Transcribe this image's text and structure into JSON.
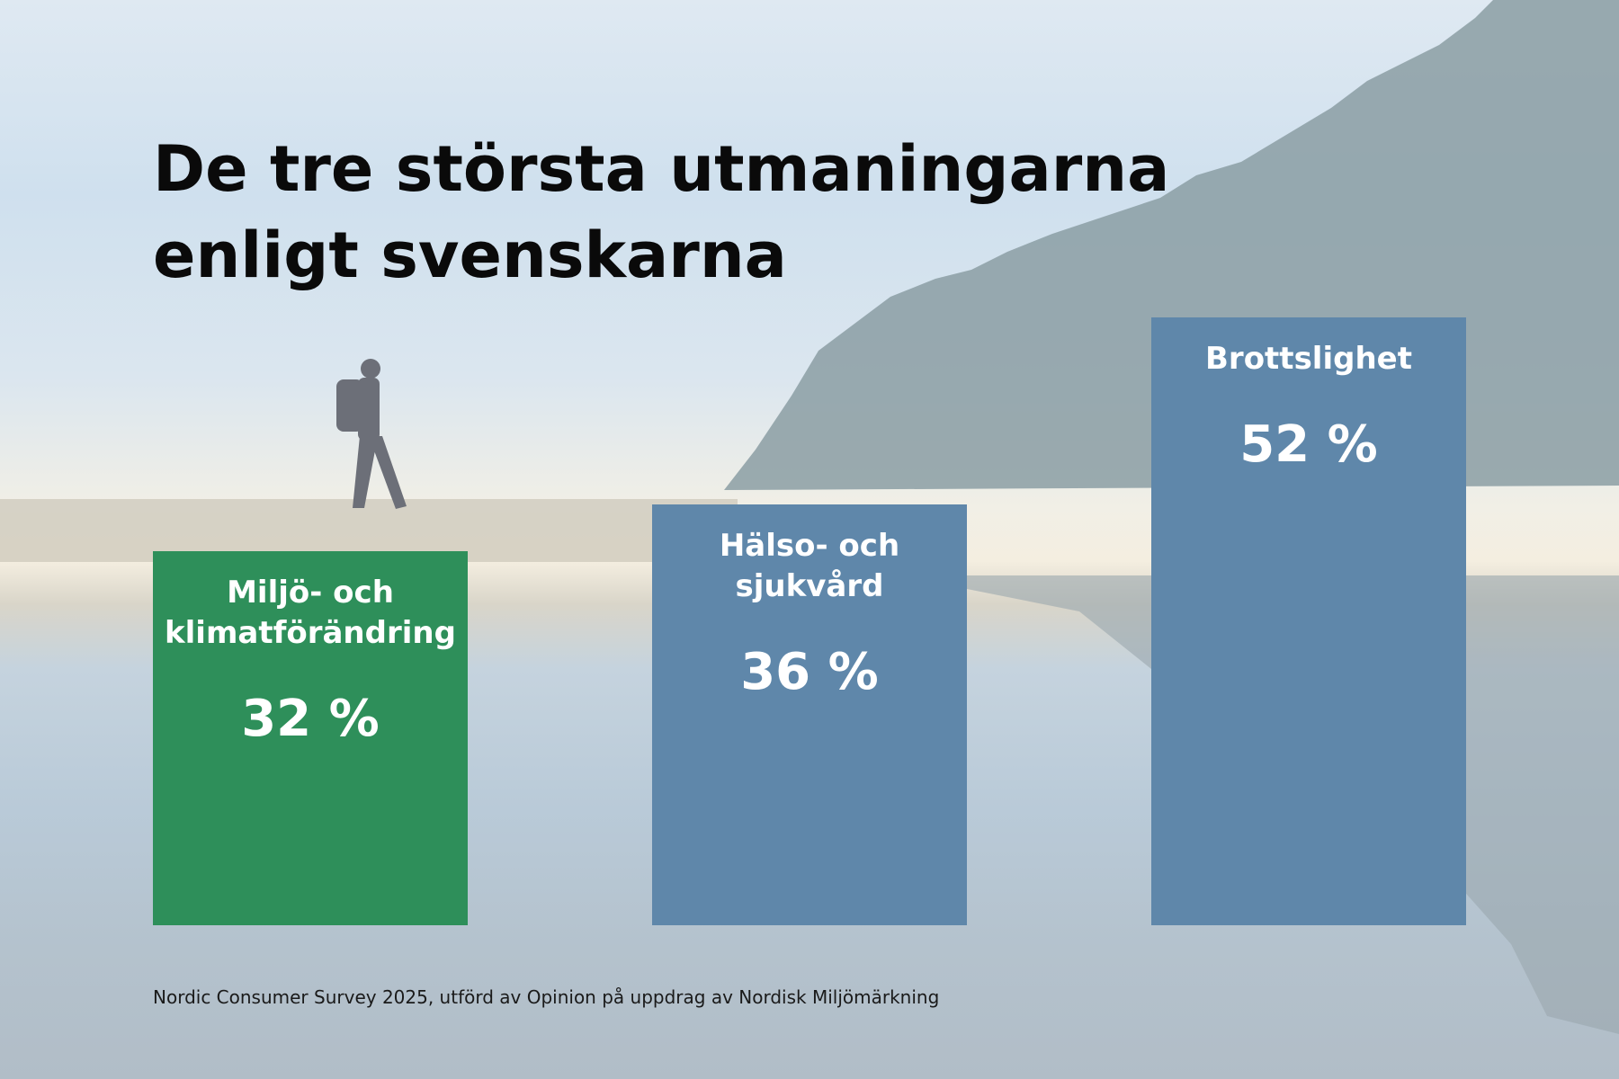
{
  "title_line1": "De tre största utmaningarna",
  "title_line2": "enligt svenskarna",
  "footer": "Nordic Consumer Survey 2025, utförd av Opinion på uppdrag av Nordisk Miljömärkning",
  "chart_data": {
    "type": "bar",
    "categories": [
      "Miljö- och klimatförändring",
      "Hälso- och sjukvård",
      "Brottslighet"
    ],
    "category_lines": [
      [
        "Miljö- och",
        "klimatförändring"
      ],
      [
        "Hälso- och",
        "sjukvård"
      ],
      [
        "Brottslighet"
      ]
    ],
    "values": [
      32,
      36,
      52
    ],
    "value_labels": [
      "32 %",
      "36 %",
      "52 %"
    ],
    "colors": [
      "#2e8f5a",
      "#5f87aa",
      "#5f87aa"
    ],
    "unit": "%"
  }
}
